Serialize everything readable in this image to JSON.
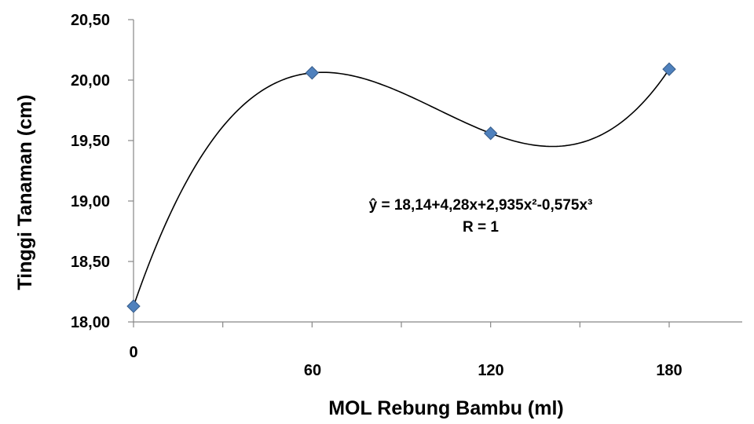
{
  "chart_data": {
    "type": "scatter",
    "x": [
      0,
      60,
      120,
      180
    ],
    "values": [
      18.13,
      20.06,
      19.56,
      20.09
    ],
    "x_tick_labels": [
      "0",
      "60",
      "120",
      "180"
    ],
    "y_tick_labels": [
      "18,00",
      "18,50",
      "19,00",
      "19,50",
      "20,00",
      "20,50"
    ],
    "xlim": [
      0,
      210
    ],
    "ylim": [
      18.0,
      20.5
    ],
    "xlabel": "MOL Rebung Bambu (ml)",
    "ylabel": "Tinggi Tanaman (cm)",
    "annotations": [
      "ŷ = 18,14+4,28x+2,935x²-0,575x³",
      "R = 1"
    ],
    "trendline": "polynomial",
    "marker": "diamond",
    "grid": false,
    "colors": {
      "marker": "#4f81bd",
      "marker_edge": "#385d8a",
      "trendline": "#000000",
      "axis": "#878787"
    }
  }
}
